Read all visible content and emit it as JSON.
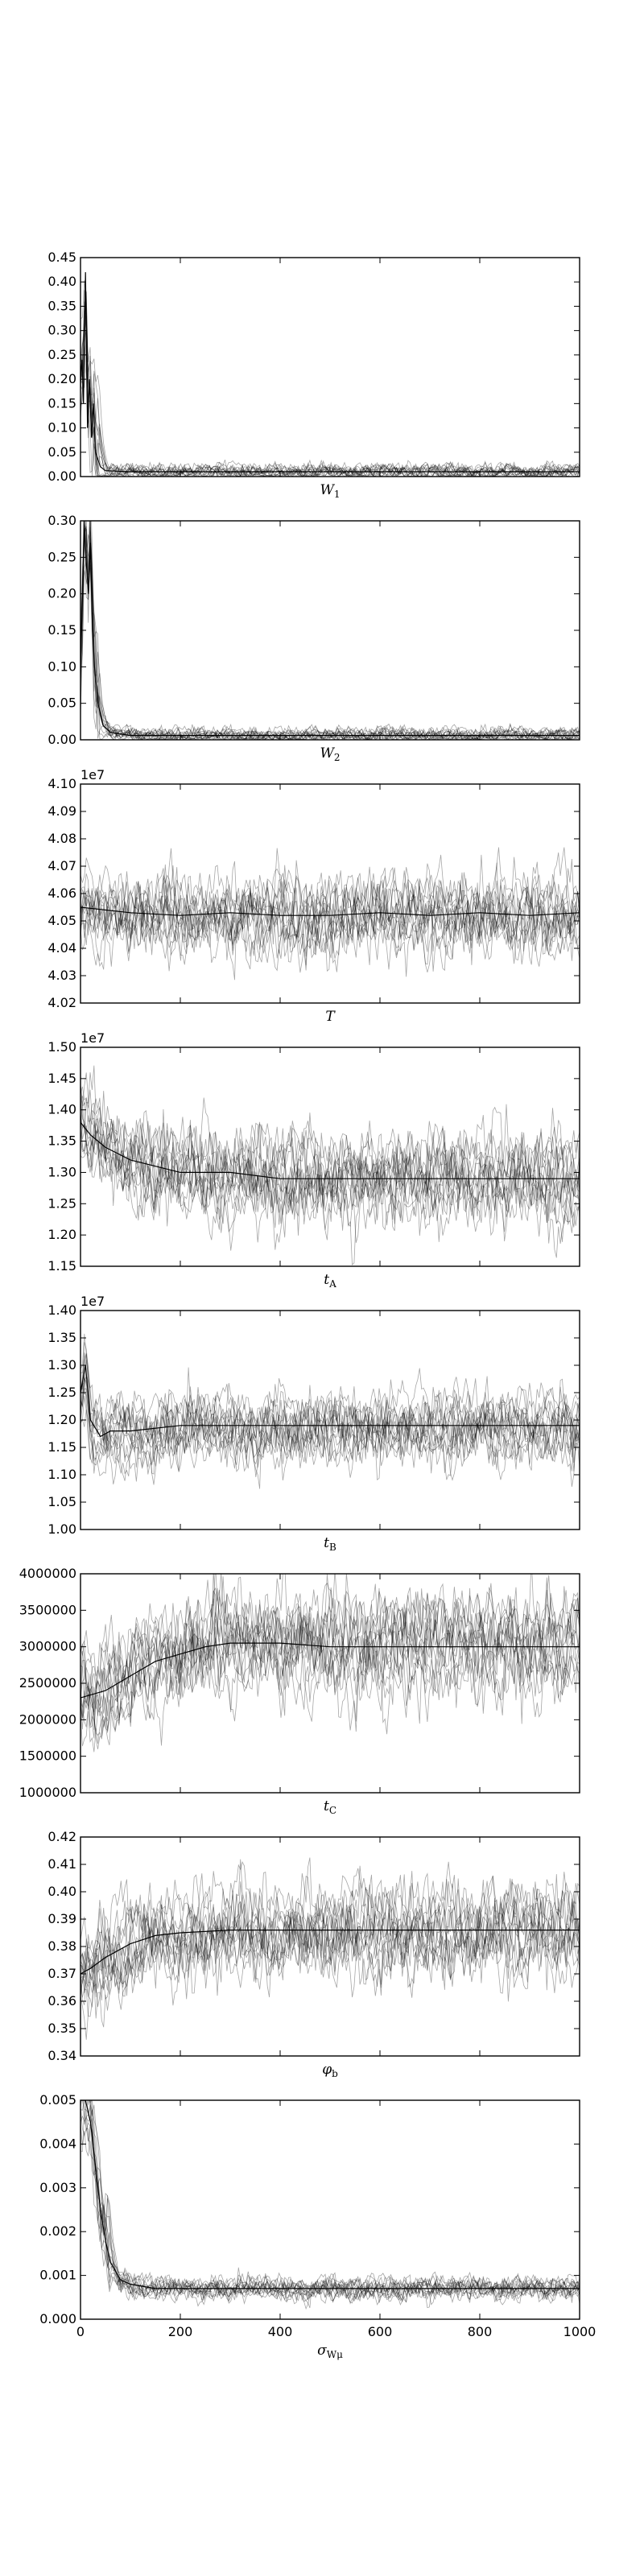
{
  "chart_data": [
    {
      "type": "line",
      "xlabel": "W1",
      "xlabel_main": "W",
      "xlabel_sub": "1",
      "xlim": [
        0,
        1000
      ],
      "ylim": [
        0.0,
        0.45
      ],
      "yticks": [
        "0.00",
        "0.05",
        "0.10",
        "0.15",
        "0.20",
        "0.25",
        "0.30",
        "0.35",
        "0.40",
        "0.45"
      ],
      "multiplier": "",
      "series": [
        {
          "x": [
            0,
            3,
            6,
            10,
            14,
            18,
            22,
            26,
            30,
            40,
            50,
            100,
            500,
            1000
          ],
          "y": [
            0.2,
            0.24,
            0.15,
            0.42,
            0.1,
            0.2,
            0.08,
            0.15,
            0.05,
            0.02,
            0.012,
            0.01,
            0.01,
            0.01
          ]
        }
      ]
    },
    {
      "type": "line",
      "xlabel": "W2",
      "xlabel_main": "W",
      "xlabel_sub": "2",
      "xlim": [
        0,
        1000
      ],
      "ylim": [
        0.0,
        0.3
      ],
      "yticks": [
        "0.00",
        "0.05",
        "0.10",
        "0.15",
        "0.20",
        "0.25",
        "0.30"
      ],
      "multiplier": "",
      "series": [
        {
          "x": [
            0,
            4,
            8,
            12,
            16,
            20,
            24,
            28,
            35,
            45,
            60,
            100,
            500,
            1000
          ],
          "y": [
            0.1,
            0.2,
            0.29,
            0.24,
            0.2,
            0.27,
            0.15,
            0.1,
            0.05,
            0.02,
            0.01,
            0.006,
            0.006,
            0.006
          ]
        }
      ]
    },
    {
      "type": "line",
      "xlabel": "T",
      "xlabel_main": "T",
      "xlabel_sub": "",
      "xlim": [
        0,
        1000
      ],
      "ylim": [
        4.02,
        4.1
      ],
      "yticks": [
        "4.02",
        "4.03",
        "4.04",
        "4.05",
        "4.06",
        "4.07",
        "4.08",
        "4.09",
        "4.10"
      ],
      "multiplier": "1e7",
      "series": [
        {
          "x": [
            0,
            100,
            200,
            300,
            400,
            500,
            600,
            700,
            800,
            900,
            1000
          ],
          "y": [
            4.055,
            4.053,
            4.052,
            4.053,
            4.052,
            4.052,
            4.053,
            4.052,
            4.053,
            4.052,
            4.053
          ]
        }
      ]
    },
    {
      "type": "line",
      "xlabel": "tA",
      "xlabel_main": "t",
      "xlabel_sub": "A",
      "xlim": [
        0,
        1000
      ],
      "ylim": [
        1.15,
        1.5
      ],
      "yticks": [
        "1.15",
        "1.20",
        "1.25",
        "1.30",
        "1.35",
        "1.40",
        "1.45",
        "1.50"
      ],
      "multiplier": "1e7",
      "series": [
        {
          "x": [
            0,
            20,
            50,
            100,
            150,
            200,
            300,
            400,
            500,
            600,
            700,
            800,
            900,
            1000
          ],
          "y": [
            1.38,
            1.36,
            1.34,
            1.32,
            1.31,
            1.3,
            1.3,
            1.29,
            1.29,
            1.29,
            1.29,
            1.29,
            1.29,
            1.29
          ]
        }
      ]
    },
    {
      "type": "line",
      "xlabel": "tB",
      "xlabel_main": "t",
      "xlabel_sub": "B",
      "xlim": [
        0,
        1000
      ],
      "ylim": [
        1.0,
        1.4
      ],
      "yticks": [
        "1.00",
        "1.05",
        "1.10",
        "1.15",
        "1.20",
        "1.25",
        "1.30",
        "1.35",
        "1.40"
      ],
      "multiplier": "1e7",
      "series": [
        {
          "x": [
            0,
            10,
            20,
            40,
            60,
            100,
            200,
            300,
            400,
            500,
            600,
            700,
            800,
            900,
            1000
          ],
          "y": [
            1.25,
            1.3,
            1.2,
            1.17,
            1.18,
            1.18,
            1.19,
            1.19,
            1.19,
            1.19,
            1.19,
            1.19,
            1.19,
            1.19,
            1.19
          ]
        }
      ]
    },
    {
      "type": "line",
      "xlabel": "tC",
      "xlabel_main": "t",
      "xlabel_sub": "C",
      "xlim": [
        0,
        1000
      ],
      "ylim": [
        1000000,
        4000000
      ],
      "yticks": [
        "1000000",
        "1500000",
        "2000000",
        "2500000",
        "3000000",
        "3500000",
        "4000000"
      ],
      "multiplier": "",
      "series": [
        {
          "x": [
            0,
            50,
            100,
            150,
            200,
            250,
            300,
            400,
            500,
            600,
            700,
            800,
            900,
            1000
          ],
          "y": [
            2300000,
            2400000,
            2600000,
            2800000,
            2900000,
            3000000,
            3050000,
            3050000,
            3000000,
            3000000,
            3000000,
            3000000,
            3000000,
            3000000
          ]
        }
      ]
    },
    {
      "type": "line",
      "xlabel": "φb",
      "xlabel_main": "φ",
      "xlabel_sub": "b",
      "xlim": [
        0,
        1000
      ],
      "ylim": [
        0.34,
        0.42
      ],
      "yticks": [
        "0.34",
        "0.35",
        "0.36",
        "0.37",
        "0.38",
        "0.39",
        "0.40",
        "0.41",
        "0.42"
      ],
      "multiplier": "",
      "series": [
        {
          "x": [
            0,
            20,
            50,
            100,
            150,
            200,
            300,
            400,
            500,
            600,
            700,
            800,
            900,
            1000
          ],
          "y": [
            0.37,
            0.372,
            0.376,
            0.381,
            0.384,
            0.385,
            0.386,
            0.386,
            0.386,
            0.386,
            0.386,
            0.386,
            0.386,
            0.386
          ]
        }
      ]
    },
    {
      "type": "line",
      "xlabel": "σWμ",
      "xlabel_main": "σ",
      "xlabel_sub": "Wμ",
      "xlim": [
        0,
        1000
      ],
      "ylim": [
        0.0,
        0.005
      ],
      "yticks": [
        "0.000",
        "0.001",
        "0.002",
        "0.003",
        "0.004",
        "0.005"
      ],
      "xticks": [
        "0",
        "200",
        "400",
        "600",
        "800",
        "1000"
      ],
      "multiplier": "",
      "series": [
        {
          "x": [
            0,
            10,
            20,
            30,
            40,
            50,
            60,
            80,
            100,
            150,
            200,
            300,
            400,
            500,
            600,
            700,
            800,
            900,
            1000
          ],
          "y": [
            0.005,
            0.005,
            0.0045,
            0.0035,
            0.0025,
            0.0018,
            0.0013,
            0.0009,
            0.0008,
            0.0007,
            0.0007,
            0.0007,
            0.0007,
            0.0007,
            0.0007,
            0.0007,
            0.0007,
            0.0007,
            0.0007
          ]
        }
      ]
    }
  ]
}
